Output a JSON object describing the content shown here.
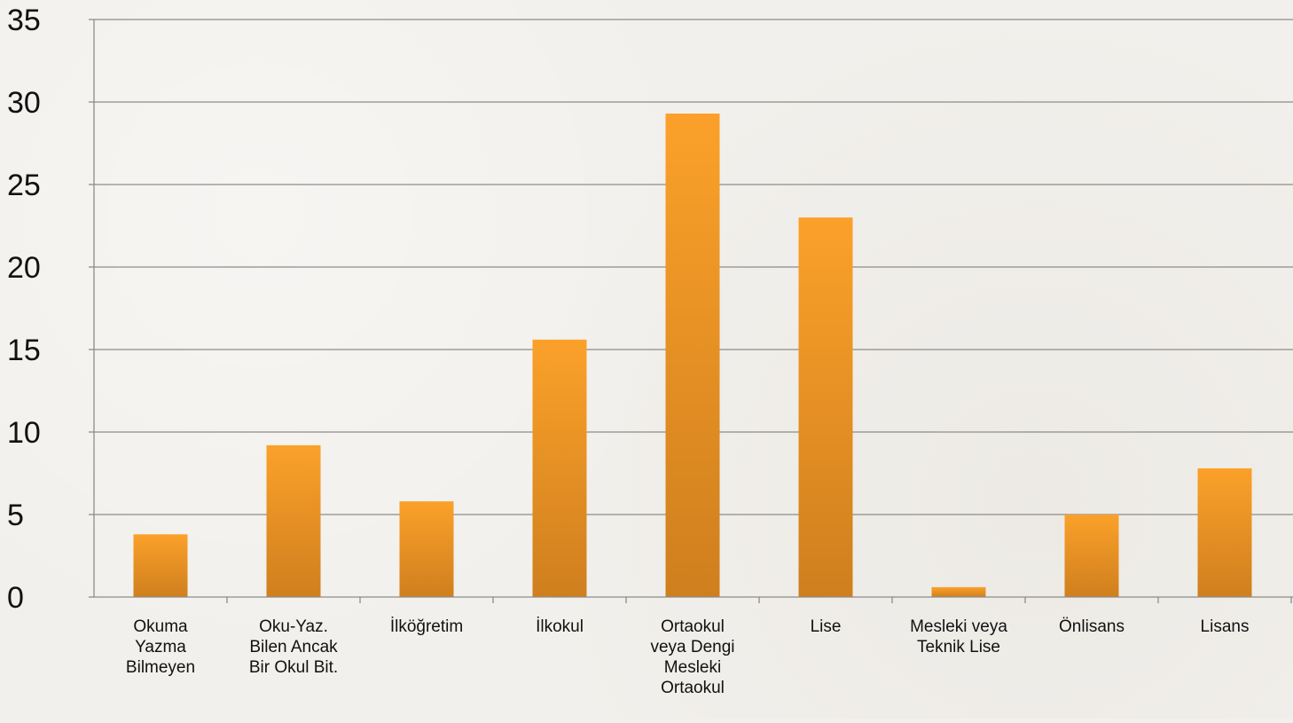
{
  "chart_data": {
    "type": "bar",
    "categories": [
      "Okuma Yazma Bilmeyen",
      "Oku-Yaz. Bilen Ancak Bir Okul Bit.",
      "İlköğretim",
      "İlkokul",
      "Ortaokul veya Dengi Mesleki Ortaokul",
      "Lise",
      "Mesleki veya Teknik Lise",
      "Önlisans",
      "Lisans"
    ],
    "category_lines": [
      [
        "Okuma",
        "Yazma",
        "Bilmeyen"
      ],
      [
        "Oku-Yaz.",
        "Bilen Ancak",
        "Bir Okul Bit."
      ],
      [
        "İlköğretim"
      ],
      [
        "İlkokul"
      ],
      [
        "Ortaokul",
        "veya Dengi",
        "Mesleki",
        "Ortaokul"
      ],
      [
        "Lise"
      ],
      [
        "Mesleki veya",
        "Teknik Lise"
      ],
      [
        "Önlisans"
      ],
      [
        "Lisans"
      ]
    ],
    "values": [
      3.8,
      9.2,
      5.8,
      15.6,
      29.3,
      23.0,
      0.6,
      5.0,
      7.8
    ],
    "ylim": [
      0,
      35
    ],
    "yticks": [
      0,
      5,
      10,
      15,
      20,
      25,
      30,
      35
    ],
    "title": "",
    "xlabel": "",
    "ylabel": "",
    "grid": true,
    "legend": "none",
    "colors": {
      "bar_top": "#fba12a",
      "bar_bottom": "#cf7f1e",
      "grid": "#8c8c8c",
      "axis": "#8c8c8c",
      "text": "#111111"
    }
  }
}
